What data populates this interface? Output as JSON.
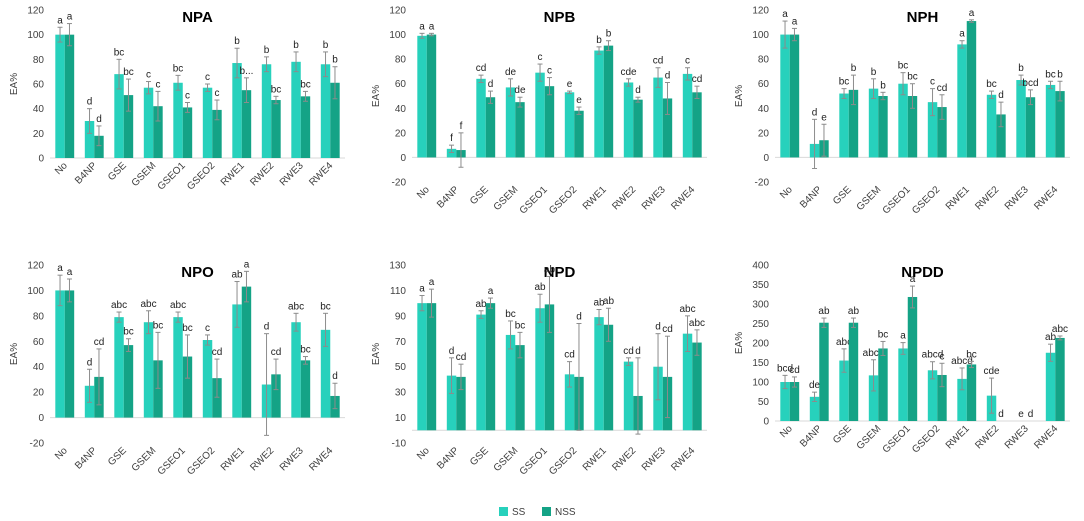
{
  "colors": {
    "SS": "#27D1BC",
    "NSS": "#14A386",
    "error": "#8c8c8c",
    "axis": "#d9d9d9",
    "text": "#404040"
  },
  "legend": {
    "items": [
      {
        "label": "SS",
        "color": "#27D1BC"
      },
      {
        "label": "NSS",
        "color": "#14A386"
      }
    ]
  },
  "chart_data": [
    {
      "type": "bar",
      "title": "NPA",
      "ylabel": "EA%",
      "xlabel": "",
      "ylim": [
        0,
        120
      ],
      "yticks": [
        0,
        20,
        40,
        60,
        80,
        100,
        120
      ],
      "categories": [
        "No",
        "B4NP",
        "GSE",
        "GSEM",
        "GSEO1",
        "GSEO2",
        "RWE1",
        "RWE2",
        "RWE3",
        "RWE4"
      ],
      "series": [
        {
          "name": "SS",
          "values": [
            100,
            30,
            68,
            57,
            61,
            57,
            77,
            76,
            78,
            76
          ],
          "errors": [
            6,
            10,
            12,
            5,
            6,
            3,
            12,
            6,
            8,
            10
          ],
          "labels": [
            "a",
            "d",
            "bc",
            "c",
            "bc",
            "c",
            "b",
            "b",
            "b",
            "b"
          ]
        },
        {
          "name": "NSS",
          "values": [
            100,
            18,
            51,
            42,
            41,
            39,
            55,
            47,
            50,
            61
          ],
          "errors": [
            9,
            8,
            13,
            12,
            4,
            8,
            10,
            3,
            4,
            13
          ],
          "labels": [
            "a",
            "d",
            "bc",
            "c",
            "c",
            "c",
            "b...",
            "bc",
            "bc",
            "b"
          ]
        }
      ]
    },
    {
      "type": "bar",
      "title": "NPB",
      "ylabel": "EA%",
      "xlabel": "",
      "ylim": [
        -20,
        120
      ],
      "yticks": [
        -20,
        0,
        20,
        40,
        60,
        80,
        100,
        120
      ],
      "categories": [
        "No",
        "B4NP",
        "GSE",
        "GSEM",
        "GSEO1",
        "GSEO2",
        "RWE1",
        "RWE2",
        "RWE3",
        "RWE4"
      ],
      "series": [
        {
          "name": "SS",
          "values": [
            99,
            7,
            64,
            57,
            69,
            53,
            87,
            61,
            65,
            68
          ],
          "errors": [
            2,
            3,
            3,
            7,
            7,
            1,
            3,
            3,
            8,
            5
          ],
          "labels": [
            "a",
            "f",
            "cd",
            "de",
            "c",
            "e",
            "b",
            "cde",
            "cd",
            "c"
          ]
        },
        {
          "name": "NSS",
          "values": [
            100,
            6,
            49,
            45,
            58,
            38,
            91,
            47,
            48,
            53
          ],
          "errors": [
            1,
            14,
            5,
            4,
            7,
            3,
            4,
            2,
            13,
            5
          ],
          "labels": [
            "a",
            "f",
            "d",
            "de",
            "c",
            "e",
            "b",
            "d",
            "d",
            "cd"
          ]
        }
      ]
    },
    {
      "type": "bar",
      "title": "NPH",
      "ylabel": "EA%",
      "xlabel": "",
      "ylim": [
        -20,
        120
      ],
      "yticks": [
        -20,
        0,
        20,
        40,
        60,
        80,
        100,
        120
      ],
      "categories": [
        "No",
        "B4NP",
        "GSE",
        "GSEM",
        "GSEO1",
        "GSEO2",
        "RWE1",
        "RWE2",
        "RWE3",
        "RWE4"
      ],
      "series": [
        {
          "name": "SS",
          "values": [
            100,
            11,
            52,
            56,
            60,
            45,
            92,
            51,
            63,
            59
          ],
          "errors": [
            11,
            20,
            4,
            8,
            9,
            11,
            3,
            3,
            4,
            3
          ],
          "labels": [
            "a",
            "d",
            "bc",
            "b",
            "bc",
            "c",
            "a",
            "bc",
            "b",
            "bc"
          ]
        },
        {
          "name": "NSS",
          "values": [
            100,
            14,
            55,
            50,
            50,
            41,
            111,
            35,
            49,
            54
          ],
          "errors": [
            5,
            13,
            12,
            3,
            10,
            10,
            1,
            10,
            6,
            8
          ],
          "labels": [
            "a",
            "e",
            "b",
            "b",
            "bc",
            "cd",
            "a",
            "d",
            "bcd",
            "b"
          ]
        }
      ]
    },
    {
      "type": "bar",
      "title": "NPO",
      "ylabel": "EA%",
      "xlabel": "",
      "ylim": [
        -20,
        120
      ],
      "yticks": [
        -20,
        0,
        20,
        40,
        60,
        80,
        100,
        120
      ],
      "categories": [
        "No",
        "B4NP",
        "GSE",
        "GSEM",
        "GSEO1",
        "GSEO2",
        "RWE1",
        "RWE2",
        "RWE3",
        "RWE4"
      ],
      "series": [
        {
          "name": "SS",
          "values": [
            100,
            25,
            79,
            75,
            79,
            61,
            89,
            26,
            75,
            69
          ],
          "errors": [
            12,
            13,
            4,
            9,
            4,
            4,
            18,
            40,
            7,
            13
          ],
          "labels": [
            "a",
            "d",
            "abc",
            "abc",
            "abc",
            "c",
            "ab",
            "d",
            "abc",
            "bc"
          ]
        },
        {
          "name": "NSS",
          "values": [
            100,
            32,
            57,
            45,
            48,
            31,
            103,
            34,
            45,
            17
          ],
          "errors": [
            9,
            22,
            5,
            22,
            17,
            15,
            12,
            12,
            3,
            10
          ],
          "labels": [
            "a",
            "cd",
            "bc",
            "bc",
            "bc",
            "cd",
            "a",
            "cd",
            "bc",
            "d"
          ]
        }
      ]
    },
    {
      "type": "bar",
      "title": "NPD",
      "ylabel": "EA%",
      "xlabel": "",
      "ylim": [
        -10,
        130
      ],
      "yticks": [
        -10,
        10,
        30,
        50,
        70,
        90,
        110,
        130
      ],
      "categories": [
        "No",
        "B4NP",
        "GSE",
        "GSEM",
        "GSEO1",
        "GSEO2",
        "RWE1",
        "RWE2",
        "RWE3",
        "RWE4"
      ],
      "series": [
        {
          "name": "SS",
          "values": [
            100,
            43,
            91,
            75,
            96,
            44,
            89,
            54,
            50,
            76
          ],
          "errors": [
            6,
            14,
            3,
            11,
            11,
            10,
            6,
            3,
            26,
            14
          ],
          "labels": [
            "a",
            "d",
            "ab",
            "bc",
            "ab",
            "cd",
            "ab",
            "cd",
            "d",
            "abc"
          ]
        },
        {
          "name": "NSS",
          "values": [
            100,
            42,
            100,
            67,
            99,
            42,
            83,
            27,
            42,
            69
          ],
          "errors": [
            11,
            10,
            4,
            10,
            22,
            42,
            13,
            30,
            32,
            10
          ],
          "labels": [
            "a",
            "cd",
            "a",
            "bc",
            "ab",
            "d",
            "ab",
            "d",
            "cd",
            "abc"
          ]
        }
      ]
    },
    {
      "type": "bar",
      "title": "NPDD",
      "ylabel": "EA%",
      "xlabel": "",
      "ylim": [
        0,
        400
      ],
      "yticks": [
        0,
        50,
        100,
        150,
        200,
        250,
        300,
        350,
        400
      ],
      "categories": [
        "No",
        "B4NP",
        "GSE",
        "GSEM",
        "GSEO1",
        "GSEO2",
        "RWE1",
        "RWE2",
        "RWE3",
        "RWE4"
      ],
      "series": [
        {
          "name": "SS",
          "values": [
            100,
            62,
            155,
            117,
            186,
            130,
            108,
            65,
            0,
            175
          ],
          "errors": [
            17,
            12,
            30,
            40,
            15,
            22,
            28,
            45,
            0,
            22
          ],
          "labels": [
            "bcd",
            "de",
            "abc",
            "abcd",
            "a",
            "abcd",
            "abcd",
            "cde",
            "e",
            "ab"
          ]
        },
        {
          "name": "NSS",
          "values": [
            100,
            252,
            252,
            186,
            318,
            118,
            145,
            0,
            0,
            213
          ],
          "errors": [
            13,
            12,
            12,
            18,
            28,
            30,
            8,
            0,
            0,
            5
          ],
          "labels": [
            "cd",
            "ab",
            "ab",
            "bc",
            "a",
            "c",
            "bc",
            "d",
            "d",
            "abc"
          ]
        }
      ]
    }
  ]
}
